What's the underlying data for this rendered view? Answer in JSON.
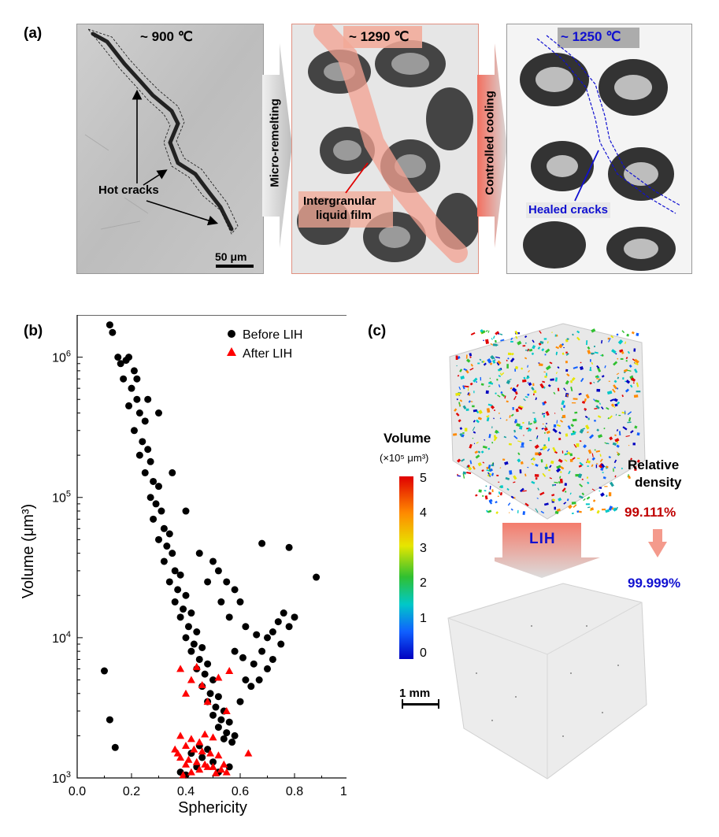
{
  "panel_a": {
    "label": "(a)",
    "stage1": {
      "temperature": "~ 900 ℃",
      "annotation": "Hot cracks",
      "scale_bar": "50 μm"
    },
    "arrow1": "Micro-remelting",
    "stage2": {
      "temperature": "~ 1290 ℃",
      "annotation_line1": "Intergranular",
      "annotation_line2": "liquid film"
    },
    "arrow2": "Controlled cooling",
    "stage3": {
      "temperature": "~ 1250 ℃",
      "annotation": "Healed cracks"
    }
  },
  "panel_b": {
    "label": "(b)"
  },
  "panel_c": {
    "label": "(c)",
    "colorbar_title": "Volume",
    "colorbar_unit": "(×10⁵ μm³)",
    "colorbar_ticks": [
      "5",
      "4",
      "3",
      "2",
      "1",
      "0"
    ],
    "relative_density_line1": "Relative",
    "relative_density_line2": "density",
    "density_before": "99.111%",
    "density_after": "99.999%",
    "process_label": "LIH",
    "scale_bar": "1 mm",
    "colors": {
      "before": "#c00000",
      "after": "#1010d0"
    }
  },
  "chart_data": {
    "type": "scatter",
    "xlabel": "Sphericity",
    "ylabel": "Volume (μm³)",
    "xlim": [
      0.0,
      1.0
    ],
    "ylim": [
      1000,
      2000000
    ],
    "yscale": "log",
    "x_ticks": [
      "0.0",
      "0.2",
      "0.4",
      "0.6",
      "0.8",
      "1.0"
    ],
    "y_ticks": [
      {
        "value": 1000,
        "base": "10",
        "exp": "3"
      },
      {
        "value": 10000,
        "base": "10",
        "exp": "4"
      },
      {
        "value": 100000,
        "base": "10",
        "exp": "5"
      },
      {
        "value": 1000000,
        "base": "10",
        "exp": "6"
      }
    ],
    "legend_position": "top-right",
    "series": [
      {
        "name": "Before LIH",
        "marker": "circle",
        "color": "#000000",
        "points": [
          [
            0.12,
            1700000
          ],
          [
            0.13,
            1500000
          ],
          [
            0.15,
            1000000
          ],
          [
            0.16,
            900000
          ],
          [
            0.18,
            950000
          ],
          [
            0.19,
            1000000
          ],
          [
            0.21,
            800000
          ],
          [
            0.17,
            700000
          ],
          [
            0.2,
            600000
          ],
          [
            0.22,
            500000
          ],
          [
            0.19,
            450000
          ],
          [
            0.23,
            400000
          ],
          [
            0.25,
            350000
          ],
          [
            0.21,
            300000
          ],
          [
            0.24,
            250000
          ],
          [
            0.26,
            220000
          ],
          [
            0.23,
            200000
          ],
          [
            0.27,
            180000
          ],
          [
            0.25,
            150000
          ],
          [
            0.28,
            130000
          ],
          [
            0.3,
            120000
          ],
          [
            0.27,
            100000
          ],
          [
            0.29,
            90000
          ],
          [
            0.31,
            80000
          ],
          [
            0.28,
            70000
          ],
          [
            0.32,
            60000
          ],
          [
            0.34,
            55000
          ],
          [
            0.3,
            50000
          ],
          [
            0.33,
            45000
          ],
          [
            0.35,
            40000
          ],
          [
            0.32,
            35000
          ],
          [
            0.36,
            30000
          ],
          [
            0.38,
            28000
          ],
          [
            0.34,
            25000
          ],
          [
            0.37,
            22000
          ],
          [
            0.4,
            20000
          ],
          [
            0.36,
            18000
          ],
          [
            0.39,
            16000
          ],
          [
            0.42,
            15000
          ],
          [
            0.38,
            14000
          ],
          [
            0.41,
            12000
          ],
          [
            0.44,
            11000
          ],
          [
            0.4,
            10000
          ],
          [
            0.43,
            9000
          ],
          [
            0.46,
            8500
          ],
          [
            0.42,
            8000
          ],
          [
            0.45,
            7000
          ],
          [
            0.48,
            6500
          ],
          [
            0.44,
            6000
          ],
          [
            0.47,
            5500
          ],
          [
            0.5,
            5000
          ],
          [
            0.46,
            4500
          ],
          [
            0.49,
            4000
          ],
          [
            0.52,
            3800
          ],
          [
            0.48,
            3500
          ],
          [
            0.51,
            3200
          ],
          [
            0.54,
            3000
          ],
          [
            0.5,
            2800
          ],
          [
            0.53,
            2600
          ],
          [
            0.56,
            2500
          ],
          [
            0.52,
            2300
          ],
          [
            0.55,
            2100
          ],
          [
            0.58,
            2000
          ],
          [
            0.54,
            1900
          ],
          [
            0.57,
            1800
          ],
          [
            0.45,
            1700
          ],
          [
            0.48,
            1600
          ],
          [
            0.42,
            1500
          ],
          [
            0.46,
            1400
          ],
          [
            0.5,
            1300
          ],
          [
            0.44,
            1200
          ],
          [
            0.38,
            1100
          ],
          [
            0.4,
            1050
          ],
          [
            0.52,
            1100
          ],
          [
            0.56,
            1200
          ],
          [
            0.6,
            3500
          ],
          [
            0.62,
            5000
          ],
          [
            0.65,
            6500
          ],
          [
            0.68,
            8000
          ],
          [
            0.7,
            10000
          ],
          [
            0.72,
            11000
          ],
          [
            0.74,
            13000
          ],
          [
            0.76,
            15000
          ],
          [
            0.78,
            12000
          ],
          [
            0.75,
            9000
          ],
          [
            0.72,
            7000
          ],
          [
            0.7,
            6000
          ],
          [
            0.67,
            5000
          ],
          [
            0.64,
            4500
          ],
          [
            0.8,
            14000
          ],
          [
            0.6,
            18000
          ],
          [
            0.58,
            22000
          ],
          [
            0.55,
            25000
          ],
          [
            0.52,
            30000
          ],
          [
            0.5,
            35000
          ],
          [
            0.68,
            47000
          ],
          [
            0.78,
            44000
          ],
          [
            0.88,
            27000
          ],
          [
            0.1,
            5800
          ],
          [
            0.12,
            2600
          ],
          [
            0.14,
            1650
          ],
          [
            0.3,
            400000
          ],
          [
            0.26,
            500000
          ],
          [
            0.22,
            700000
          ],
          [
            0.35,
            150000
          ],
          [
            0.4,
            80000
          ],
          [
            0.45,
            40000
          ],
          [
            0.48,
            25000
          ],
          [
            0.53,
            18000
          ],
          [
            0.56,
            14000
          ],
          [
            0.62,
            12000
          ],
          [
            0.66,
            10500
          ],
          [
            0.58,
            8000
          ],
          [
            0.61,
            7200
          ]
        ]
      },
      {
        "name": "After LIH",
        "marker": "triangle",
        "color": "#ff0000",
        "points": [
          [
            0.38,
            6000
          ],
          [
            0.44,
            6200
          ],
          [
            0.42,
            5000
          ],
          [
            0.46,
            4600
          ],
          [
            0.52,
            5200
          ],
          [
            0.56,
            5800
          ],
          [
            0.4,
            4000
          ],
          [
            0.48,
            3500
          ],
          [
            0.55,
            3000
          ],
          [
            0.38,
            2000
          ],
          [
            0.42,
            1900
          ],
          [
            0.45,
            1800
          ],
          [
            0.47,
            2050
          ],
          [
            0.5,
            1950
          ],
          [
            0.4,
            1700
          ],
          [
            0.43,
            1600
          ],
          [
            0.46,
            1550
          ],
          [
            0.49,
            1500
          ],
          [
            0.52,
            1450
          ],
          [
            0.38,
            1400
          ],
          [
            0.41,
            1350
          ],
          [
            0.44,
            1300
          ],
          [
            0.47,
            1250
          ],
          [
            0.5,
            1200
          ],
          [
            0.53,
            1150
          ],
          [
            0.55,
            1100
          ],
          [
            0.42,
            1100
          ],
          [
            0.45,
            1150
          ],
          [
            0.48,
            1200
          ],
          [
            0.4,
            1250
          ],
          [
            0.54,
            1250
          ],
          [
            0.63,
            1500
          ],
          [
            0.39,
            1050
          ],
          [
            0.51,
            1080
          ],
          [
            0.36,
            1600
          ],
          [
            0.37,
            1500
          ]
        ]
      }
    ]
  }
}
